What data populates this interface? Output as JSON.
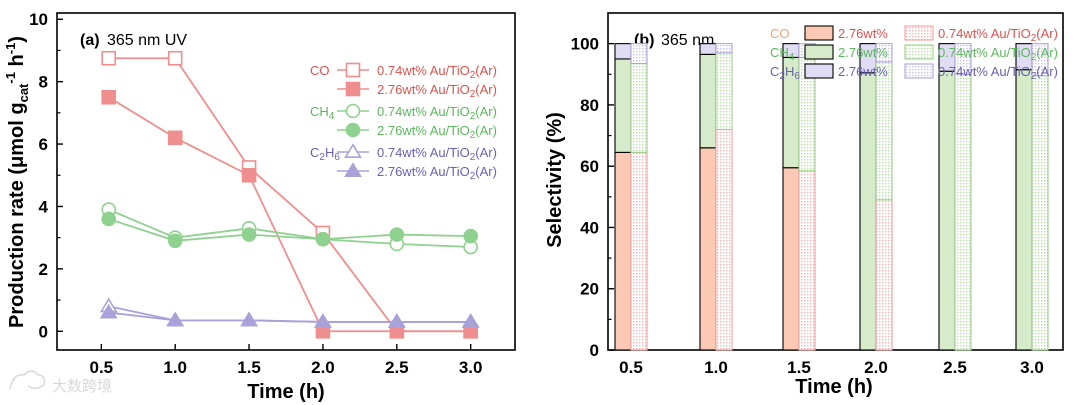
{
  "chart_data": [
    {
      "type": "line",
      "panel_label": "(a)",
      "annotation": "365 nm UV",
      "xlabel": "Time (h)",
      "ylabel": "Production rate (μmol g_cat^-1 h^-1)",
      "ylabel_parts": {
        "main": "Production rate (μmol g",
        "sub1": "cat",
        "mid": " h",
        "sup1": "-1",
        "sup0": "-1",
        "end": ")"
      },
      "xlim": [
        0.2,
        3.3
      ],
      "ylim": [
        -0.6,
        10.2
      ],
      "xticks": [
        "0.5",
        "1.0",
        "1.5",
        "2.0",
        "2.5",
        "3.0"
      ],
      "yticks": [
        "0",
        "2",
        "4",
        "6",
        "8",
        "10"
      ],
      "x": [
        0.55,
        1.0,
        1.5,
        2.0,
        2.5,
        3.0
      ],
      "series": [
        {
          "name": "0.74wt% Au/TiO2(Ar)",
          "gas": "CO",
          "marker": "square",
          "filled": false,
          "color": "#ef8e8e",
          "values": [
            8.75,
            8.75,
            5.25,
            3.15,
            0.0,
            0.0
          ]
        },
        {
          "name": "2.76wt% Au/TiO2(Ar)",
          "gas": "CO",
          "marker": "square",
          "filled": true,
          "color": "#ef8e8e",
          "values": [
            7.5,
            6.2,
            5.0,
            0.0,
            0.0,
            0.0
          ]
        },
        {
          "name": "0.74wt% Au/TiO2(Ar)",
          "gas": "CH4",
          "marker": "circle",
          "filled": false,
          "color": "#8fd18f",
          "values": [
            3.9,
            3.0,
            3.3,
            2.95,
            2.8,
            2.7
          ]
        },
        {
          "name": "2.76wt% Au/TiO2(Ar)",
          "gas": "CH4",
          "marker": "circle",
          "filled": true,
          "color": "#8fd18f",
          "values": [
            3.6,
            2.9,
            3.1,
            2.95,
            3.1,
            3.05
          ]
        },
        {
          "name": "0.74wt% Au/TiO2(Ar)",
          "gas": "C2H6",
          "marker": "triangle",
          "filled": false,
          "color": "#a9a2d8",
          "values": [
            0.8,
            0.35,
            0.35,
            0.3,
            0.3,
            0.3
          ]
        },
        {
          "name": "2.76wt% Au/TiO2(Ar)",
          "gas": "C2H6",
          "marker": "triangle",
          "filled": true,
          "color": "#a9a2d8",
          "values": [
            0.6,
            0.35,
            0.35,
            0.3,
            0.3,
            0.3
          ]
        }
      ],
      "legend": {
        "placement": "top-right",
        "groups": [
          {
            "gas_parts": [
              "CO",
              "",
              ""
            ],
            "color": "#d9534f",
            "entries": [
              {
                "parts": [
                  "0.74wt% Au/TiO",
                  "2",
                  "(Ar)"
                ],
                "marker": "square",
                "filled": false
              },
              {
                "parts": [
                  "2.76wt% Au/TiO",
                  "2",
                  "(Ar)"
                ],
                "marker": "square",
                "filled": true
              }
            ]
          },
          {
            "gas_parts": [
              "CH",
              "4",
              ""
            ],
            "color": "#5cb85c",
            "entries": [
              {
                "parts": [
                  "0.74wt% Au/TiO",
                  "2",
                  "(Ar)"
                ],
                "marker": "circle",
                "filled": false
              },
              {
                "parts": [
                  "2.76wt% Au/TiO",
                  "2",
                  "(Ar)"
                ],
                "marker": "circle",
                "filled": true
              }
            ]
          },
          {
            "gas_parts": [
              "C",
              "2",
              "H",
              "6"
            ],
            "color": "#6b62b3",
            "entries": [
              {
                "parts": [
                  "0.74wt% Au/TiO",
                  "2",
                  "(Ar)"
                ],
                "marker": "triangle",
                "filled": false
              },
              {
                "parts": [
                  "2.76wt% Au/TiO",
                  "2",
                  "(Ar)"
                ],
                "marker": "triangle",
                "filled": true
              }
            ]
          }
        ]
      }
    },
    {
      "type": "bar",
      "stacked": true,
      "panel_label": "(b)",
      "annotation": "365 nm",
      "xlabel": "Time (h)",
      "ylabel": "Selectivity (%)",
      "categories": [
        "0.5",
        "1.0",
        "1.5",
        "2.0",
        "2.5",
        "3.0"
      ],
      "ylim": [
        0,
        110
      ],
      "yticks": [
        "0",
        "20",
        "40",
        "60",
        "80",
        "100"
      ],
      "samples": [
        {
          "name": "2.76wt%",
          "style": "solid",
          "CO": [
            64.5,
            66,
            59.5,
            0,
            0,
            0
          ],
          "CH4": [
            30.5,
            30.5,
            36,
            90.5,
            91,
            91.5
          ],
          "C2H6": [
            5,
            3.5,
            4.5,
            9.5,
            9,
            8.5
          ]
        },
        {
          "name": "0.74wt% Au/TiO2(Ar)",
          "style": "dotted",
          "CO": [
            64.5,
            72,
            58.5,
            49,
            0,
            0
          ],
          "CH4": [
            29,
            25,
            37,
            45,
            90,
            89.5
          ],
          "C2H6": [
            6.5,
            3,
            4.5,
            6,
            10,
            10.5
          ]
        }
      ],
      "colors": {
        "CO": "#fbc9b4",
        "CH4": "#d6ebc9",
        "C2H6": "#e0dcf3"
      },
      "legend": {
        "placement": "top",
        "rows": [
          {
            "gas_parts": [
              "CO",
              "",
              ""
            ],
            "gas_color": "#f0a27d",
            "solid": "2.76wt%",
            "dotted_parts": [
              "0.74wt% Au/TiO",
              "2",
              "(Ar)"
            ],
            "text_color": "#d9534f"
          },
          {
            "gas_parts": [
              "CH",
              "4",
              ""
            ],
            "gas_color": "#5cb85c",
            "solid": "2.76wt%",
            "dotted_parts": [
              "0.74wt% Au/TiO",
              "2",
              "(Ar)"
            ],
            "text_color": "#5cb85c"
          },
          {
            "gas_parts": [
              "C",
              "2",
              "H",
              "6"
            ],
            "gas_color": "#6b62b3",
            "solid": "2.76wt%",
            "dotted_parts": [
              "0.74wt% Au/TiO",
              "2",
              "(Ar)"
            ],
            "text_color": "#6b62b3"
          }
        ]
      }
    }
  ],
  "watermark": "大数跨境"
}
